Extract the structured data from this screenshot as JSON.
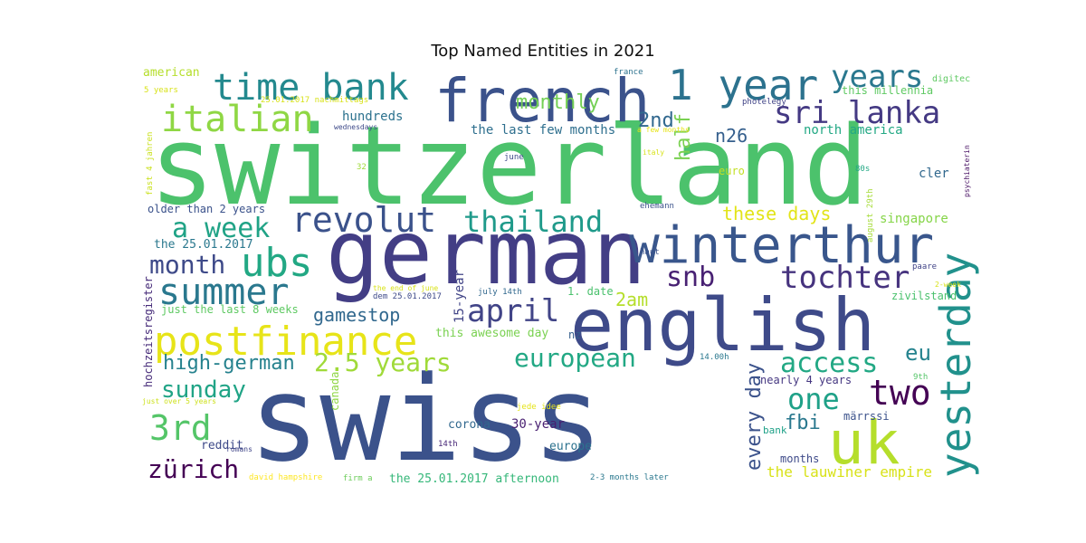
{
  "chart_data": {
    "type": "wordcloud",
    "title": "Top Named Entities in 2021",
    "words": [
      {
        "text": "switzerland",
        "color": "#4cc26c"
      },
      {
        "text": "swiss",
        "color": "#3b528b"
      },
      {
        "text": "german",
        "color": "#433e85"
      },
      {
        "text": "english",
        "color": "#3e4a89"
      },
      {
        "text": "winterthur",
        "color": "#39568c"
      },
      {
        "text": "french",
        "color": "#3b528b"
      },
      {
        "text": "uk",
        "color": "#b5de2b"
      },
      {
        "text": "yesterday",
        "color": "#21918c"
      },
      {
        "text": "1 year",
        "color": "#2c728e"
      },
      {
        "text": "time bank",
        "color": "#23898e"
      },
      {
        "text": "postfinance",
        "color": "#e7e419"
      },
      {
        "text": "revolut",
        "color": "#3b528b"
      },
      {
        "text": "italian",
        "color": "#8fd744"
      },
      {
        "text": "years",
        "color": "#2a788e"
      },
      {
        "text": "sri lanka",
        "color": "#443983"
      },
      {
        "text": "thailand",
        "color": "#1f9a8a"
      },
      {
        "text": "ubs",
        "color": "#22a884"
      },
      {
        "text": "tochter",
        "color": "#46337e"
      },
      {
        "text": "summer",
        "color": "#2a788e"
      },
      {
        "text": "two",
        "color": "#440154"
      },
      {
        "text": "april",
        "color": "#414487"
      },
      {
        "text": "a week",
        "color": "#20a386"
      },
      {
        "text": "2.5 years",
        "color": "#a0da39"
      },
      {
        "text": "one",
        "color": "#1fa188"
      },
      {
        "text": "access",
        "color": "#22a884"
      },
      {
        "text": "european",
        "color": "#22a884"
      },
      {
        "text": "month",
        "color": "#3e4a89"
      },
      {
        "text": "snb",
        "color": "#482173"
      },
      {
        "text": "3rd",
        "color": "#54c568"
      },
      {
        "text": "sunday",
        "color": "#20a486"
      },
      {
        "text": "zürich",
        "color": "#440154"
      },
      {
        "text": "high-german",
        "color": "#26828e"
      },
      {
        "text": "monthly",
        "color": "#74d055"
      },
      {
        "text": "2nd",
        "color": "#31688e"
      },
      {
        "text": "half",
        "color": "#7ad151"
      },
      {
        "text": "n26",
        "color": "#355f8d"
      },
      {
        "text": "every day",
        "color": "#3b528b"
      },
      {
        "text": "eu",
        "color": "#25838e"
      },
      {
        "text": "fbi",
        "color": "#2a788e"
      },
      {
        "text": "gamestop",
        "color": "#31688e"
      },
      {
        "text": "these days",
        "color": "#e2e418"
      },
      {
        "text": "2am",
        "color": "#b5de2b"
      },
      {
        "text": "singapore",
        "color": "#86d549"
      },
      {
        "text": "15-year",
        "color": "#414487"
      },
      {
        "text": "the lauwiner empire",
        "color": "#d8e219"
      },
      {
        "text": "north america",
        "color": "#22a884"
      },
      {
        "text": "the last few months",
        "color": "#2e6f8e"
      },
      {
        "text": "hundreds",
        "color": "#2c728e"
      },
      {
        "text": "older than 2 years",
        "color": "#3b528b"
      },
      {
        "text": "30-year",
        "color": "#481f71"
      },
      {
        "text": "this awesome day",
        "color": "#7ad151"
      },
      {
        "text": "corona",
        "color": "#31688e"
      },
      {
        "text": "the 25.01.2017 afternoon",
        "color": "#35b779"
      },
      {
        "text": "europe",
        "color": "#2c728e"
      },
      {
        "text": "reddit",
        "color": "#3e4a89"
      },
      {
        "text": "just the last 8 weeks",
        "color": "#5ec962"
      },
      {
        "text": "the 25.01.2017",
        "color": "#2a788e"
      },
      {
        "text": "american",
        "color": "#b5de2b"
      },
      {
        "text": "this millennia",
        "color": "#5ec962"
      },
      {
        "text": "nearly 4 years",
        "color": "#453781"
      },
      {
        "text": "märrssi",
        "color": "#3b528b"
      },
      {
        "text": "months",
        "color": "#3e4a89"
      },
      {
        "text": "zivilstand",
        "color": "#4ac16d"
      },
      {
        "text": "1. date",
        "color": "#4ac16d"
      },
      {
        "text": "nz",
        "color": "#355f8d"
      },
      {
        "text": "cler",
        "color": "#31688e"
      },
      {
        "text": "euro",
        "color": "#c2df23"
      },
      {
        "text": "hochzeitsregister",
        "color": "#472c7a"
      },
      {
        "text": "canada",
        "color": "#8fd744"
      },
      {
        "text": "bank",
        "color": "#1fa188"
      },
      {
        "text": "digitec",
        "color": "#5ec962"
      },
      {
        "text": "wednesdays",
        "color": "#3e4a89"
      },
      {
        "text": "25.01.2017 nachmittags",
        "color": "#d8e219"
      },
      {
        "text": "5 years",
        "color": "#d8e219"
      },
      {
        "text": "france",
        "color": "#2c728e"
      },
      {
        "text": "photelegy",
        "color": "#414487"
      },
      {
        "text": "a few months",
        "color": "#e7e419"
      },
      {
        "text": "italy",
        "color": "#d8e219"
      },
      {
        "text": "june",
        "color": "#3e4a89"
      },
      {
        "text": "32",
        "color": "#a0da39"
      },
      {
        "text": "fast 4 jahren",
        "color": "#cae11f"
      },
      {
        "text": "psychiaterin",
        "color": "#471063"
      },
      {
        "text": "80s",
        "color": "#22a884"
      },
      {
        "text": "august 29th",
        "color": "#a5db36"
      },
      {
        "text": "ehemann",
        "color": "#3b528b"
      },
      {
        "text": "haut",
        "color": "#3b528b"
      },
      {
        "text": "paare",
        "color": "#414487"
      },
      {
        "text": "2-week",
        "color": "#d8e219"
      },
      {
        "text": "the end of june",
        "color": "#d8e219"
      },
      {
        "text": "dem 25.01.2017",
        "color": "#3e4a89"
      },
      {
        "text": "july 14th",
        "color": "#31688e"
      },
      {
        "text": "14.00h",
        "color": "#2a788e"
      },
      {
        "text": "9th",
        "color": "#54c568"
      },
      {
        "text": "just over 5 years",
        "color": "#cde11d"
      },
      {
        "text": "jede idee",
        "color": "#e5e419"
      },
      {
        "text": "14th",
        "color": "#482878"
      },
      {
        "text": "romans",
        "color": "#404688"
      },
      {
        "text": "david hampshire",
        "color": "#fde725"
      },
      {
        "text": "firm a",
        "color": "#6ccd5a"
      },
      {
        "text": "2-3 months later",
        "color": "#2a788e"
      }
    ]
  }
}
